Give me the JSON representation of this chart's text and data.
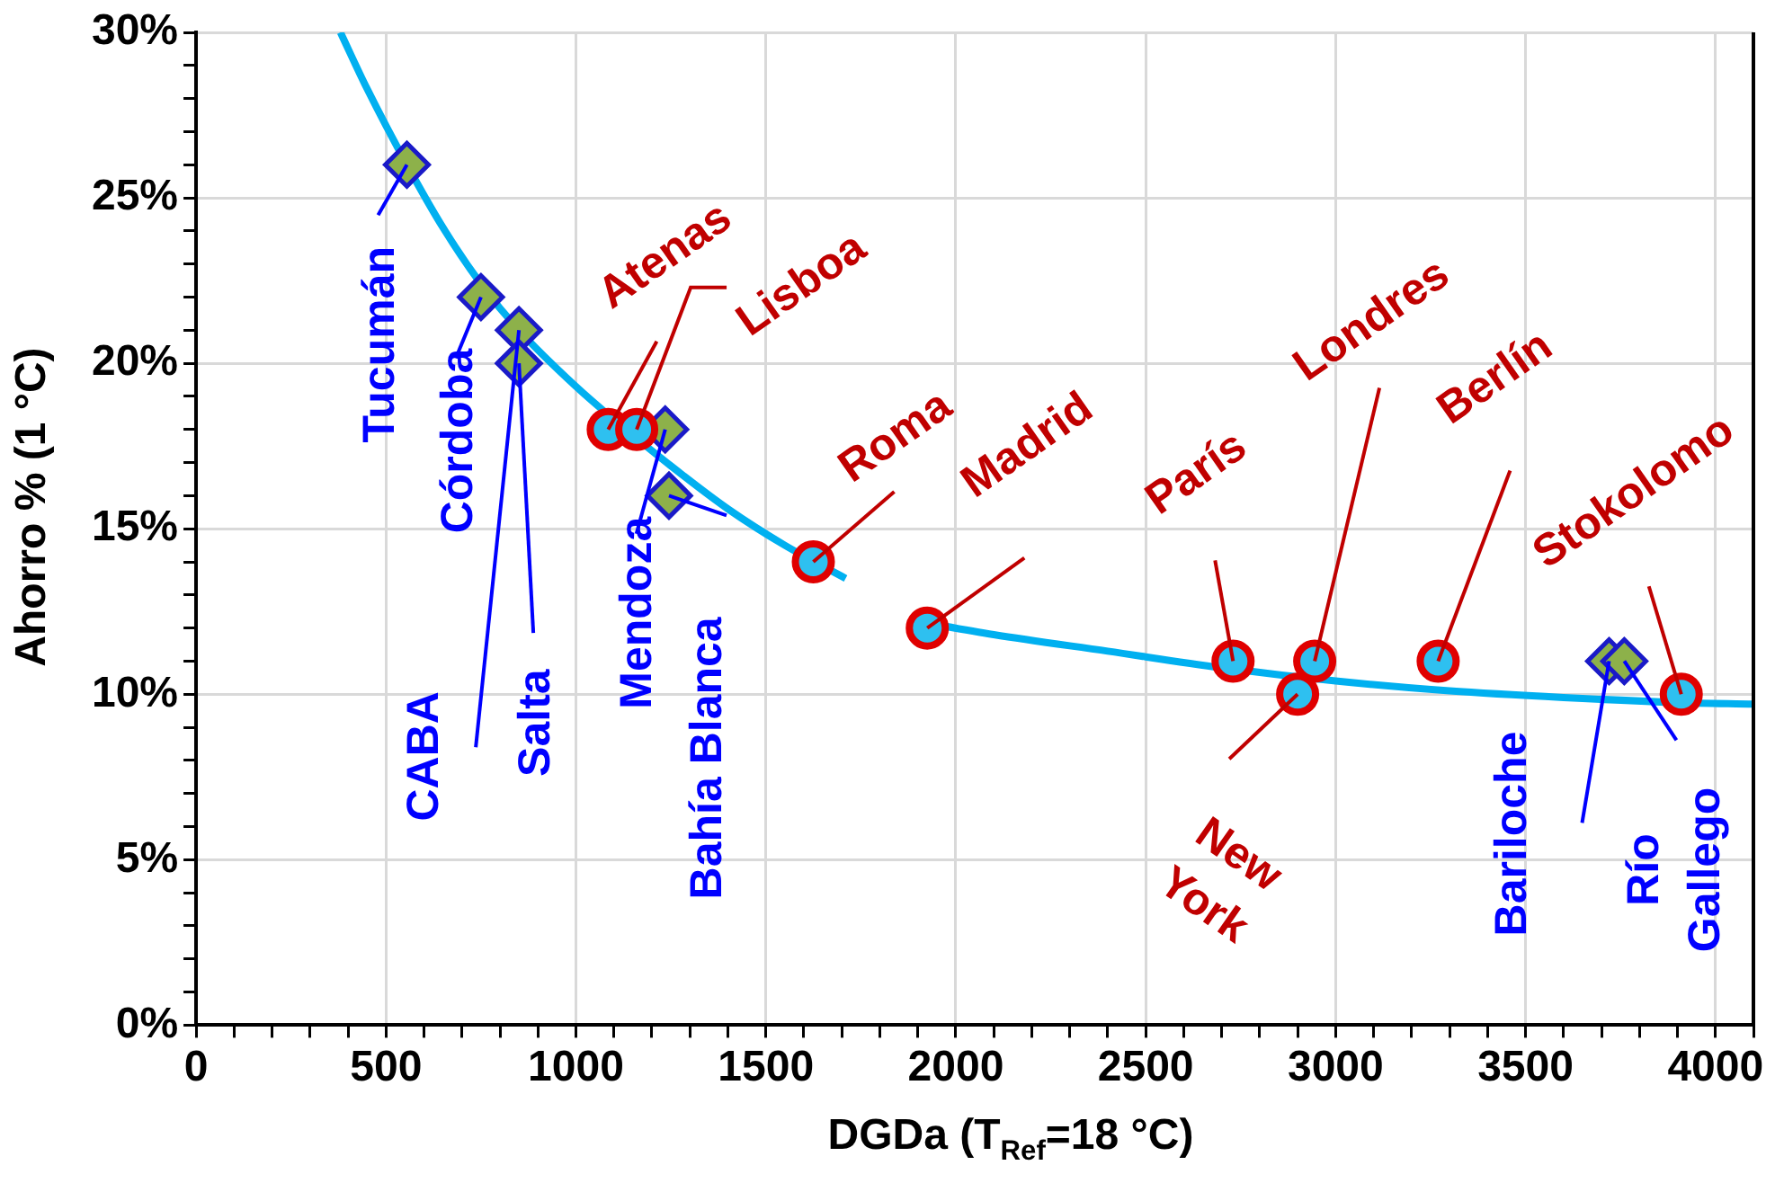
{
  "chart_data": {
    "type": "scatter",
    "xlabel": "DGDa (T$_{Ref}$=18 °C)",
    "ylabel": "Ahorro % (1 °C)",
    "xlim": [
      0,
      4100
    ],
    "ylim": [
      0,
      30
    ],
    "grid": true,
    "legend": false,
    "xticks": [
      0,
      {
        "value": 100,
        "label": null
      },
      {
        "value": 200,
        "label": null
      },
      {
        "value": 300,
        "label": null
      },
      {
        "value": 400,
        "label": null
      },
      500,
      {
        "value": 600,
        "label": null
      },
      {
        "value": 700,
        "label": null
      },
      {
        "value": 800,
        "label": null
      },
      {
        "value": 900,
        "label": null
      },
      1000,
      {
        "value": 1100,
        "label": null
      },
      {
        "value": 1200,
        "label": null
      },
      {
        "value": 1300,
        "label": null
      },
      {
        "value": 1400,
        "label": null
      },
      1500,
      {
        "value": 1600,
        "label": null
      },
      {
        "value": 1700,
        "label": null
      },
      {
        "value": 1800,
        "label": null
      },
      {
        "value": 1900,
        "label": null
      },
      2000,
      {
        "value": 2100,
        "label": null
      },
      {
        "value": 2200,
        "label": null
      },
      {
        "value": 2300,
        "label": null
      },
      {
        "value": 2400,
        "label": null
      },
      2500,
      {
        "value": 2600,
        "label": null
      },
      {
        "value": 2700,
        "label": null
      },
      {
        "value": 2800,
        "label": null
      },
      {
        "value": 2900,
        "label": null
      },
      3000,
      {
        "value": 3100,
        "label": null
      },
      {
        "value": 3200,
        "label": null
      },
      {
        "value": 3300,
        "label": null
      },
      {
        "value": 3400,
        "label": null
      },
      3500,
      {
        "value": 3600,
        "label": null
      },
      {
        "value": 3700,
        "label": null
      },
      {
        "value": 3800,
        "label": null
      },
      {
        "value": 3900,
        "label": null
      },
      4000,
      {
        "value": 4100,
        "label": null
      }
    ],
    "yticks": [
      {
        "value": 0,
        "label": "0%"
      },
      {
        "value": 1,
        "label": null
      },
      {
        "value": 2,
        "label": null
      },
      {
        "value": 3,
        "label": null
      },
      {
        "value": 4,
        "label": null
      },
      {
        "value": 5,
        "label": "5%"
      },
      {
        "value": 6,
        "label": null
      },
      {
        "value": 7,
        "label": null
      },
      {
        "value": 8,
        "label": null
      },
      {
        "value": 9,
        "label": null
      },
      {
        "value": 10,
        "label": "10%"
      },
      {
        "value": 11,
        "label": null
      },
      {
        "value": 12,
        "label": null
      },
      {
        "value": 13,
        "label": null
      },
      {
        "value": 14,
        "label": null
      },
      {
        "value": 15,
        "label": "15%"
      },
      {
        "value": 16,
        "label": null
      },
      {
        "value": 17,
        "label": null
      },
      {
        "value": 18,
        "label": null
      },
      {
        "value": 19,
        "label": null
      },
      {
        "value": 20,
        "label": "20%"
      },
      {
        "value": 21,
        "label": null
      },
      {
        "value": 22,
        "label": null
      },
      {
        "value": 23,
        "label": null
      },
      {
        "value": 24,
        "label": null
      },
      {
        "value": 25,
        "label": "25%"
      },
      {
        "value": 26,
        "label": null
      },
      {
        "value": 27,
        "label": null
      },
      {
        "value": 28,
        "label": null
      },
      {
        "value": 29,
        "label": null
      },
      {
        "value": 30,
        "label": "30%"
      }
    ],
    "series": [
      {
        "type": "line",
        "marker": "none",
        "color": "#00b0f0",
        "x": [
          380,
          450,
          555,
          650,
          750,
          850,
          1000,
          1100,
          1250,
          1400,
          1550,
          1710
        ],
        "values": [
          30,
          28.3,
          26,
          24.1,
          22.4,
          21,
          19.3,
          18.3,
          16.9,
          15.6,
          14.5,
          13.5
        ]
      },
      {
        "type": "line",
        "marker": "none",
        "color": "#00b0f0",
        "x": [
          1900,
          2100,
          2400,
          2700,
          3000,
          3300,
          3600,
          3900,
          4100
        ],
        "values": [
          12.2,
          11.8,
          11.3,
          10.8,
          10.4,
          10.1,
          9.9,
          9.75,
          9.7
        ]
      },
      {
        "type": "scatter",
        "marker": "diamond",
        "color": "#8db14a",
        "x": [
          555,
          750,
          850,
          850,
          1235,
          1245,
          3720,
          3760
        ],
        "values": [
          26,
          22,
          21,
          20,
          18,
          16,
          11,
          11
        ]
      },
      {
        "type": "scatter",
        "marker": "circle",
        "color": "#e00000",
        "x": [
          1085,
          1160,
          1625,
          1925,
          2730,
          2900,
          2945,
          3270,
          3910
        ],
        "values": [
          18,
          18,
          14,
          12,
          11,
          10,
          11,
          11,
          10
        ]
      }
    ],
    "annotations": [
      {
        "text": "Tucumán",
        "x": 555,
        "y": 26
      },
      {
        "text": "Córdoba",
        "x": 750,
        "y": 22
      },
      {
        "text": "CABA",
        "x": 850,
        "y": 21
      },
      {
        "text": "Salta",
        "x": 850,
        "y": 20
      },
      {
        "text": "Mendoza",
        "x": 1235,
        "y": 18
      },
      {
        "text": "Bahía Blanca",
        "x": 1245,
        "y": 16
      },
      {
        "text": "Bariloche",
        "x": 3720,
        "y": 11
      },
      {
        "text": "Río Gallego",
        "x": 3760,
        "y": 11
      },
      {
        "text": "Atenas",
        "x": 1085,
        "y": 18
      },
      {
        "text": "Lisboa",
        "x": 1160,
        "y": 18
      },
      {
        "text": "Roma",
        "x": 1625,
        "y": 14
      },
      {
        "text": "Madrid",
        "x": 1925,
        "y": 12
      },
      {
        "text": "París",
        "x": 2730,
        "y": 11
      },
      {
        "text": "New York",
        "x": 2900,
        "y": 10
      },
      {
        "text": "Londres",
        "x": 2945,
        "y": 11
      },
      {
        "text": "Berlín",
        "x": 3270,
        "y": 11
      },
      {
        "text": "Stokolomo",
        "x": 3910,
        "y": 10
      }
    ]
  }
}
